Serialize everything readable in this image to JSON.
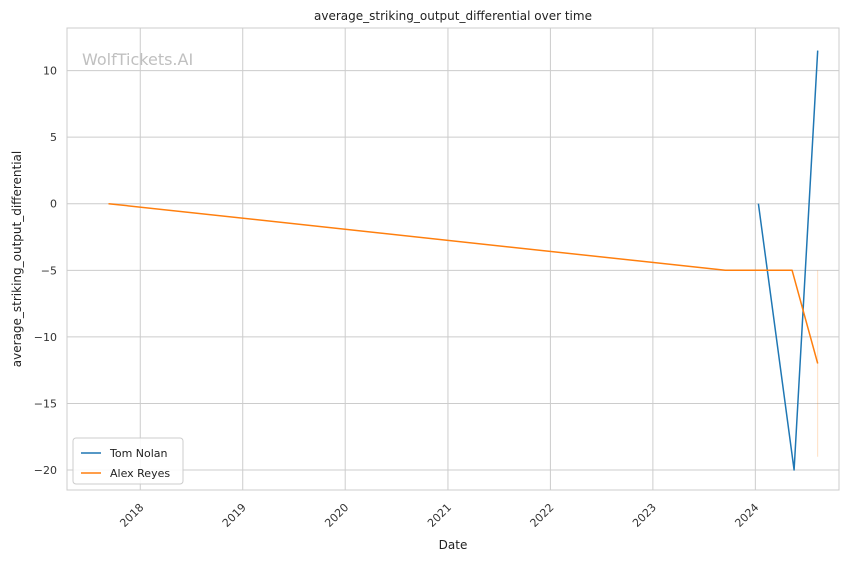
{
  "chart_data": {
    "type": "line",
    "title": "average_striking_output_differential over time",
    "xlabel": "Date",
    "ylabel": "average_striking_output_differential",
    "watermark": "WolfTickets.AI",
    "x_is_date": true,
    "xlim": [
      "2017-04-15",
      "2024-10-25"
    ],
    "ylim": [
      -21.5,
      13.2
    ],
    "x_ticks": [
      {
        "date": "2018-01-01",
        "label": "2018"
      },
      {
        "date": "2019-01-01",
        "label": "2019"
      },
      {
        "date": "2020-01-01",
        "label": "2020"
      },
      {
        "date": "2021-01-01",
        "label": "2021"
      },
      {
        "date": "2022-01-01",
        "label": "2022"
      },
      {
        "date": "2023-01-01",
        "label": "2023"
      },
      {
        "date": "2024-01-01",
        "label": "2024"
      }
    ],
    "y_ticks": [
      {
        "value": 10,
        "label": "10"
      },
      {
        "value": 5,
        "label": "5"
      },
      {
        "value": 0,
        "label": "0"
      },
      {
        "value": -5,
        "label": "−5"
      },
      {
        "value": -10,
        "label": "−10"
      },
      {
        "value": -15,
        "label": "−15"
      },
      {
        "value": -20,
        "label": "−20"
      }
    ],
    "grid": true,
    "legend_position": "lower-left",
    "series": [
      {
        "name": "Tom Nolan",
        "color": "#1f77b4",
        "points": [
          {
            "x": "2024-01-12",
            "y": 0
          },
          {
            "x": "2024-05-18",
            "y": -20
          },
          {
            "x": "2024-08-10",
            "y": 11.5
          }
        ]
      },
      {
        "name": "Alex Reyes",
        "color": "#ff7f0e",
        "points": [
          {
            "x": "2017-09-10",
            "y": 0
          },
          {
            "x": "2023-09-16",
            "y": -5
          },
          {
            "x": "2024-05-11",
            "y": -5
          },
          {
            "x": "2024-08-10",
            "y": -12
          }
        ]
      }
    ],
    "faint_markers": [
      {
        "color": "#ff7f0e",
        "x": "2024-08-10",
        "y_range": [
          -19,
          -5
        ]
      }
    ]
  }
}
